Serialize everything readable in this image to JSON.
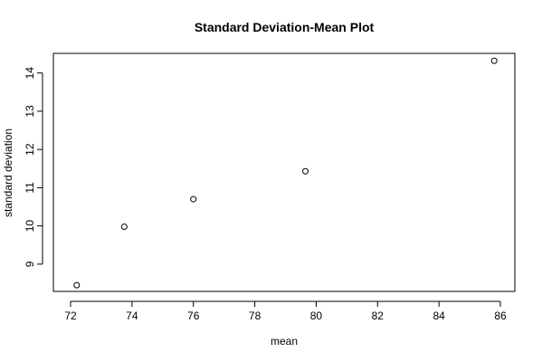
{
  "chart_data": {
    "type": "scatter",
    "title": "Standard Deviation-Mean Plot",
    "xlabel": "mean",
    "ylabel": "standard deviation",
    "xlim": [
      72,
      86
    ],
    "ylim": [
      8.5,
      14.3
    ],
    "xticks": [
      72,
      74,
      76,
      78,
      80,
      82,
      84,
      86
    ],
    "yticks": [
      9,
      10,
      11,
      12,
      13,
      14
    ],
    "grid": false,
    "legend": "none",
    "marker": "open-circle",
    "points": [
      {
        "x": 72.2,
        "y": 8.45
      },
      {
        "x": 73.75,
        "y": 9.98
      },
      {
        "x": 76.0,
        "y": 10.7
      },
      {
        "x": 79.65,
        "y": 11.43
      },
      {
        "x": 85.8,
        "y": 14.32
      }
    ]
  }
}
